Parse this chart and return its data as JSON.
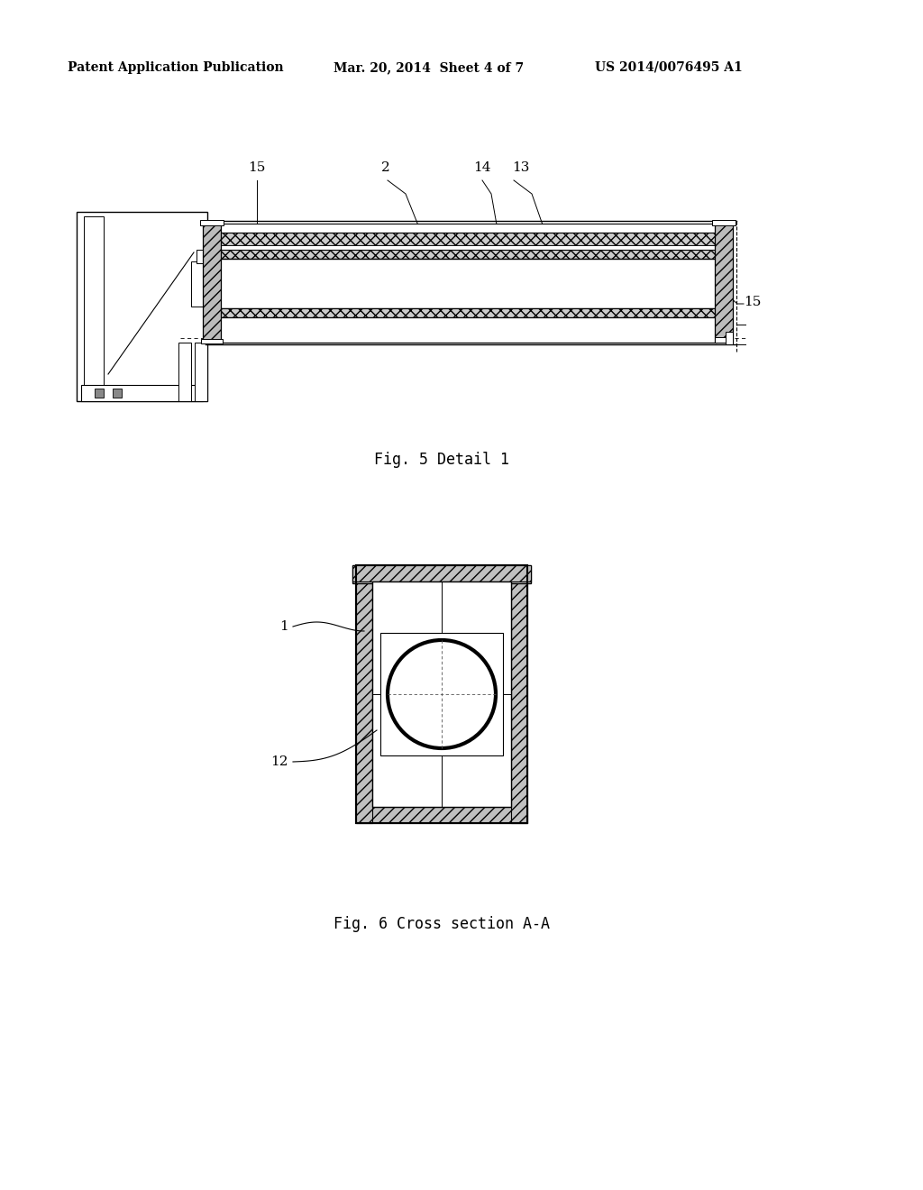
{
  "bg_color": "#ffffff",
  "header_left": "Patent Application Publication",
  "header_mid": "Mar. 20, 2014  Sheet 4 of 7",
  "header_right": "US 2014/0076495 A1",
  "fig5_caption": "Fig. 5 Detail 1",
  "fig6_caption": "Fig. 6 Cross section A-A",
  "label_15a": "15",
  "label_2": "2",
  "label_14": "14",
  "label_13": "13",
  "label_15b": "15",
  "label_1": "1",
  "label_12": "12"
}
